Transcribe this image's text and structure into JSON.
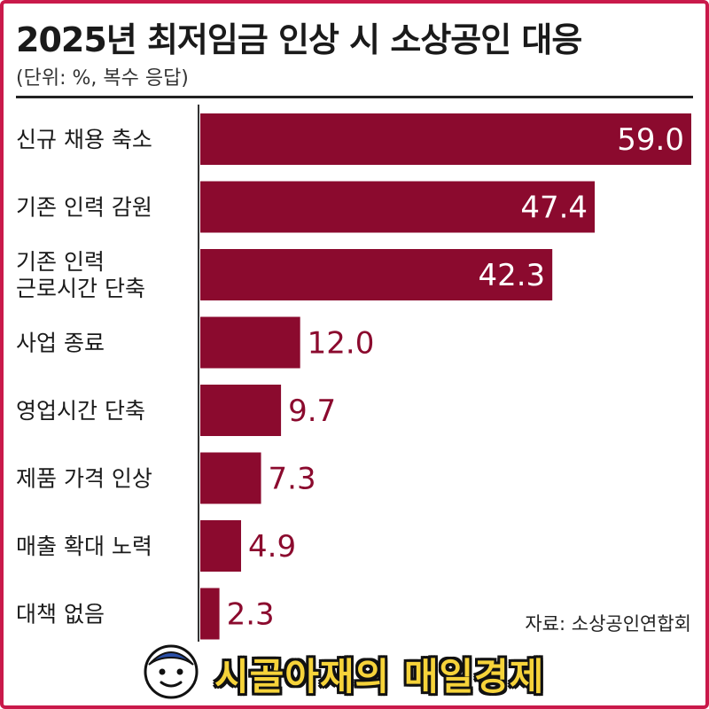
{
  "header": {
    "title": "2025년 최저임금 인상 시 소상공인 대응",
    "subtitle": "(단위: %, 복수 응답)"
  },
  "chart_data": {
    "type": "bar",
    "orientation": "horizontal",
    "categories": [
      [
        "신규 채용 축소"
      ],
      [
        "기존 인력 감원"
      ],
      [
        "기존 인력",
        "근로시간 단축"
      ],
      [
        "사업 종료"
      ],
      [
        "영업시간 단축"
      ],
      [
        "제품 가격 인상"
      ],
      [
        "매출 확대 노력"
      ],
      [
        "대책 없음"
      ]
    ],
    "values": [
      59.0,
      47.4,
      42.3,
      12.0,
      9.7,
      7.3,
      4.9,
      2.3
    ],
    "value_labels": [
      "59.0",
      "47.4",
      "42.3",
      "12.0",
      "9.7",
      "7.3",
      "4.9",
      "2.3"
    ],
    "xlim": [
      0,
      59.0
    ],
    "grid": false,
    "bar_color": "#8b0a2e",
    "label_inside_color": "#ffffff",
    "label_outside_color": "#8b0a2e"
  },
  "footer": {
    "source": "자료: 소상공인연합회",
    "banner_text": "시골아재의 매일경제"
  },
  "colors": {
    "frame": "#c9194a",
    "banner_text": "#f6d33a"
  }
}
